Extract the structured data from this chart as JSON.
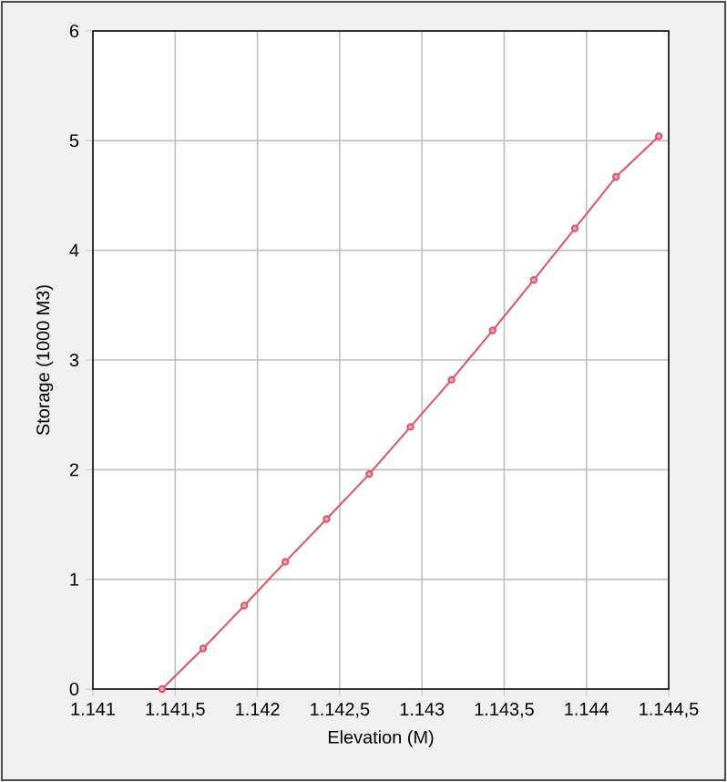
{
  "chart_data": {
    "type": "line",
    "xlabel": "Elevation (M)",
    "ylabel": "Storage (1000 M3)",
    "x": [
      1141.42,
      1141.67,
      1141.92,
      1142.17,
      1142.42,
      1142.68,
      1142.93,
      1143.18,
      1143.43,
      1143.68,
      1143.93,
      1144.18,
      1144.44
    ],
    "series": [
      {
        "color": "#d9536b",
        "values": [
          0,
          0.37,
          0.76,
          1.16,
          1.55,
          1.96,
          2.39,
          2.82,
          3.27,
          3.73,
          4.2,
          4.67,
          5.04
        ]
      }
    ],
    "xlim": [
      1141,
      1144.5
    ],
    "xticks": [
      {
        "value": 1141,
        "label": "1.141"
      },
      {
        "value": 1141.5,
        "label": "1.141,5"
      },
      {
        "value": 1142,
        "label": "1.142"
      },
      {
        "value": 1142.5,
        "label": "1.142,5"
      },
      {
        "value": 1143,
        "label": "1.143"
      },
      {
        "value": 1143.5,
        "label": "1.143,5"
      },
      {
        "value": 1144,
        "label": "1.144"
      },
      {
        "value": 1144.5,
        "label": "1.144,5"
      }
    ],
    "ylim": [
      0,
      6
    ],
    "yticks": [
      0,
      1,
      2,
      3,
      4,
      5,
      6
    ],
    "grid": true,
    "marker": "circle",
    "line_style": "solid"
  }
}
